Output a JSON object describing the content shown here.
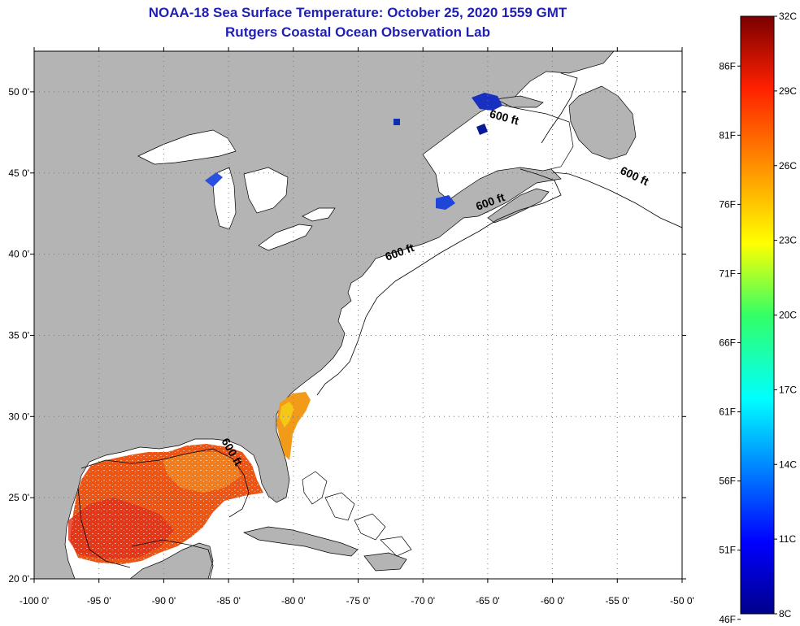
{
  "title": {
    "line1": "NOAA-18 Sea Surface Temperature:  October 25, 2020 1559 GMT",
    "line2": "Rutgers Coastal Ocean Observation Lab"
  },
  "colors": {
    "title": "#1f1fb4",
    "land": "#b4b4b4",
    "ocean": "#ffffff",
    "grid": "#7a7a7a"
  },
  "chart_data": {
    "type": "heatmap",
    "x_axis": {
      "label_units": "degrees longitude",
      "ticks": [
        {
          "value": -100,
          "label": "-100 0'"
        },
        {
          "value": -95,
          "label": "-95 0'"
        },
        {
          "value": -90,
          "label": "-90 0'"
        },
        {
          "value": -85,
          "label": "-85 0'"
        },
        {
          "value": -80,
          "label": "-80 0'"
        },
        {
          "value": -75,
          "label": "-75 0'"
        },
        {
          "value": -70,
          "label": "-70 0'"
        },
        {
          "value": -65,
          "label": "-65 0'"
        },
        {
          "value": -60,
          "label": "-60 0'"
        },
        {
          "value": -55,
          "label": "-55 0'"
        },
        {
          "value": -50,
          "label": "-50 0'"
        }
      ],
      "range": [
        -100,
        -50
      ]
    },
    "y_axis": {
      "label_units": "degrees latitude",
      "ticks": [
        {
          "value": 20,
          "label": "20 0'"
        },
        {
          "value": 25,
          "label": "25 0'"
        },
        {
          "value": 30,
          "label": "30 0'"
        },
        {
          "value": 35,
          "label": "35 0'"
        },
        {
          "value": 40,
          "label": "40 0'"
        },
        {
          "value": 45,
          "label": "45 0'"
        },
        {
          "value": 50,
          "label": "50 0'"
        }
      ],
      "range": [
        20,
        52.5
      ]
    },
    "contour_labels": [
      {
        "text": "600 ft",
        "lon": -63.8,
        "lat": 48.2,
        "angle": 15
      },
      {
        "text": "600 ft",
        "lon": -53.8,
        "lat": 44.6,
        "angle": 25
      },
      {
        "text": "600 ft",
        "lon": -64.7,
        "lat": 43.0,
        "angle": -20
      },
      {
        "text": "600 ft",
        "lon": -71.7,
        "lat": 39.9,
        "angle": -20
      },
      {
        "text": "600 ft",
        "lon": -85.0,
        "lat": 27.7,
        "angle": 60
      }
    ],
    "colorbar": {
      "celsius": [
        {
          "value": 32,
          "label": "32C"
        },
        {
          "value": 29,
          "label": "29C"
        },
        {
          "value": 26,
          "label": "26C"
        },
        {
          "value": 23,
          "label": "23C"
        },
        {
          "value": 20,
          "label": "20C"
        },
        {
          "value": 17,
          "label": "17C"
        },
        {
          "value": 14,
          "label": "14C"
        },
        {
          "value": 11,
          "label": "11C"
        },
        {
          "value": 8,
          "label": "8C"
        }
      ],
      "fahrenheit": [
        {
          "value": 86,
          "label": "86F"
        },
        {
          "value": 81,
          "label": "81F"
        },
        {
          "value": 76,
          "label": "76F"
        },
        {
          "value": 71,
          "label": "71F"
        },
        {
          "value": 66,
          "label": "66F"
        },
        {
          "value": 61,
          "label": "61F"
        },
        {
          "value": 56,
          "label": "56F"
        },
        {
          "value": 51,
          "label": "51F"
        },
        {
          "value": 46,
          "label": "46F"
        }
      ],
      "range_celsius": [
        8,
        32
      ]
    }
  }
}
